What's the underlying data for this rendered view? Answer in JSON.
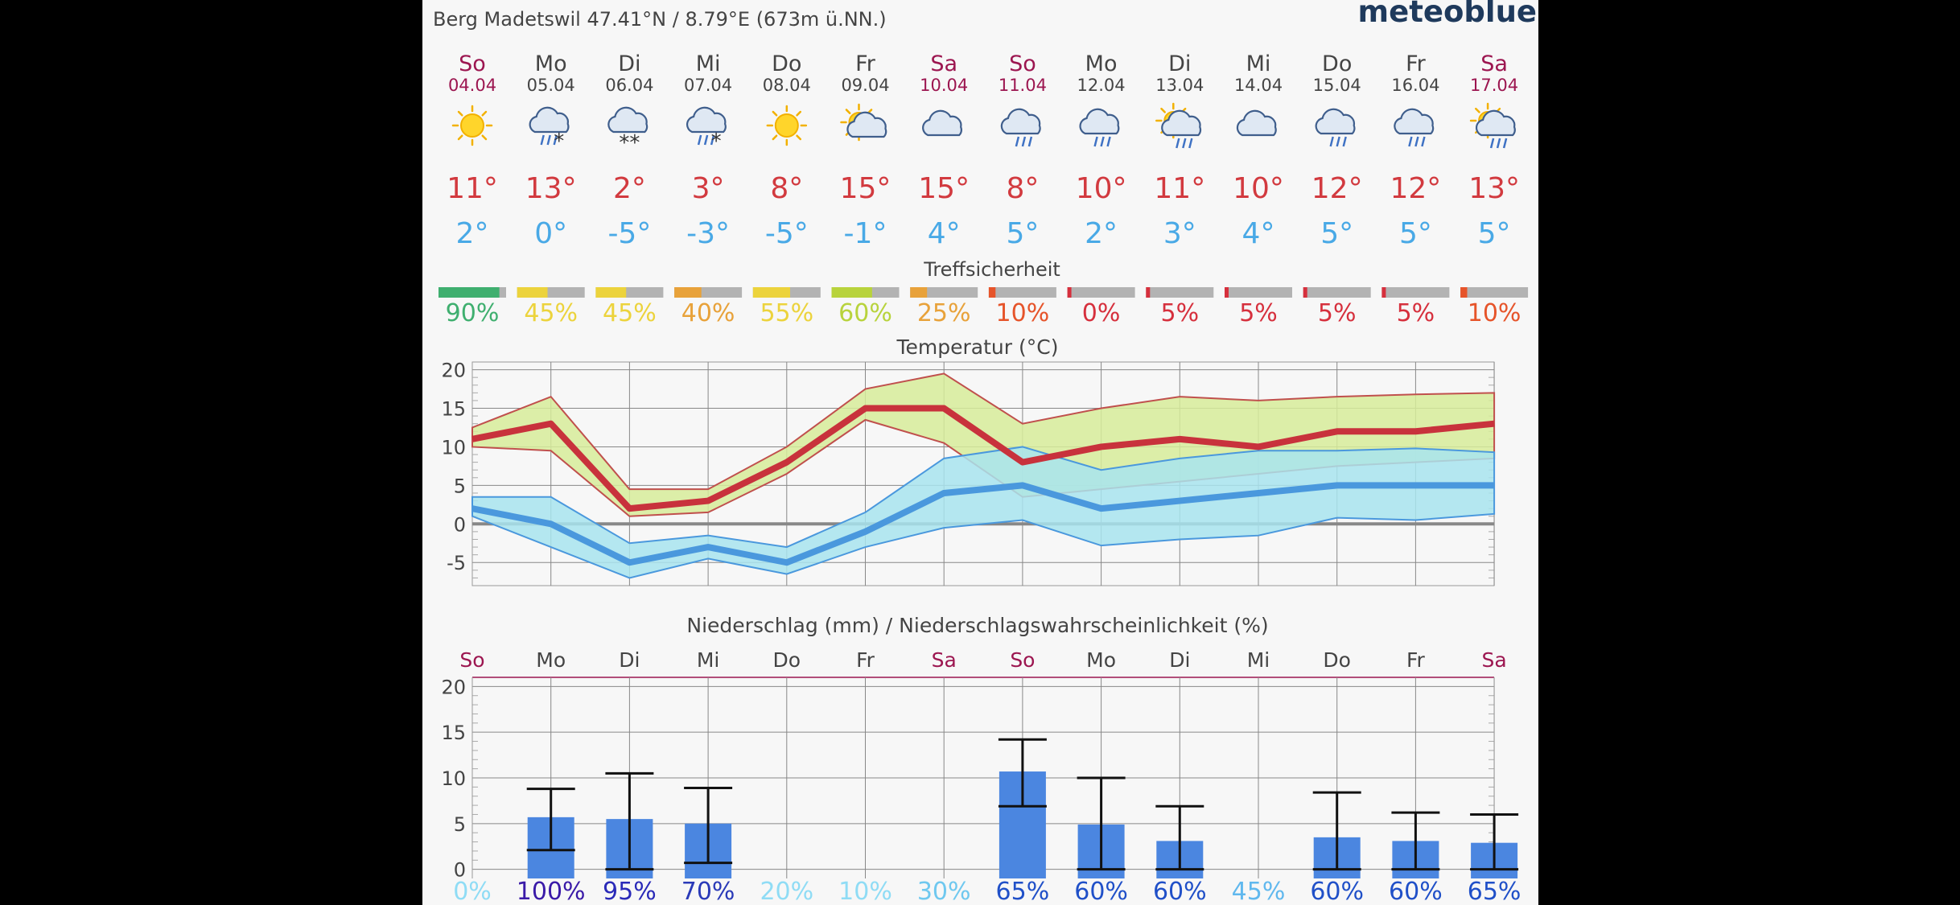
{
  "header": {
    "location": "Berg Madetswil  47.41°N / 8.79°E (673m ü.NN.)",
    "logo": "meteoblue"
  },
  "days": [
    {
      "name": "So",
      "date": "04.04",
      "weekend": true,
      "icon": "sun-icon",
      "tmax": "11°",
      "tmin": "2°",
      "conf_pct": 90,
      "conf_label": "90%",
      "conf_color": "#3faf6f"
    },
    {
      "name": "Mo",
      "date": "05.04",
      "weekend": false,
      "icon": "cloud-rain-snow-icon",
      "tmax": "13°",
      "tmin": "0°",
      "conf_pct": 45,
      "conf_label": "45%",
      "conf_color": "#ecd33c"
    },
    {
      "name": "Di",
      "date": "06.04",
      "weekend": false,
      "icon": "cloud-snow-icon",
      "tmax": "2°",
      "tmin": "-5°",
      "conf_pct": 45,
      "conf_label": "45%",
      "conf_color": "#ecd33c"
    },
    {
      "name": "Mi",
      "date": "07.04",
      "weekend": false,
      "icon": "cloud-rain-snow-icon",
      "tmax": "3°",
      "tmin": "-3°",
      "conf_pct": 40,
      "conf_label": "40%",
      "conf_color": "#e8a23a"
    },
    {
      "name": "Do",
      "date": "08.04",
      "weekend": false,
      "icon": "sun-icon",
      "tmax": "8°",
      "tmin": "-5°",
      "conf_pct": 55,
      "conf_label": "55%",
      "conf_color": "#ecd33c"
    },
    {
      "name": "Fr",
      "date": "09.04",
      "weekend": false,
      "icon": "sun-cloud-icon",
      "tmax": "15°",
      "tmin": "-1°",
      "conf_pct": 60,
      "conf_label": "60%",
      "conf_color": "#b8d33c"
    },
    {
      "name": "Sa",
      "date": "10.04",
      "weekend": true,
      "icon": "cloud-icon",
      "tmax": "15°",
      "tmin": "4°",
      "conf_pct": 25,
      "conf_label": "25%",
      "conf_color": "#e8a23a"
    },
    {
      "name": "So",
      "date": "11.04",
      "weekend": true,
      "icon": "cloud-rain-icon",
      "tmax": "8°",
      "tmin": "5°",
      "conf_pct": 10,
      "conf_label": "10%",
      "conf_color": "#e6542a"
    },
    {
      "name": "Mo",
      "date": "12.04",
      "weekend": false,
      "icon": "cloud-rain-icon",
      "tmax": "10°",
      "tmin": "2°",
      "conf_pct": 0,
      "conf_label": "0%",
      "conf_color": "#d6303d"
    },
    {
      "name": "Di",
      "date": "13.04",
      "weekend": false,
      "icon": "sun-cloud-rain-icon",
      "tmax": "11°",
      "tmin": "3°",
      "conf_pct": 5,
      "conf_label": "5%",
      "conf_color": "#d6303d"
    },
    {
      "name": "Mi",
      "date": "14.04",
      "weekend": false,
      "icon": "cloud-icon",
      "tmax": "10°",
      "tmin": "4°",
      "conf_pct": 5,
      "conf_label": "5%",
      "conf_color": "#d6303d"
    },
    {
      "name": "Do",
      "date": "15.04",
      "weekend": false,
      "icon": "cloud-rain-icon",
      "tmax": "12°",
      "tmin": "5°",
      "conf_pct": 5,
      "conf_label": "5%",
      "conf_color": "#d6303d"
    },
    {
      "name": "Fr",
      "date": "16.04",
      "weekend": false,
      "icon": "cloud-rain-icon",
      "tmax": "12°",
      "tmin": "5°",
      "conf_pct": 5,
      "conf_label": "5%",
      "conf_color": "#d6303d"
    },
    {
      "name": "Sa",
      "date": "17.04",
      "weekend": true,
      "icon": "sun-cloud-rain-icon",
      "tmax": "13°",
      "tmin": "5°",
      "conf_pct": 10,
      "conf_label": "10%",
      "conf_color": "#e6542a"
    }
  ],
  "confidence_title": "Treffsicherheit",
  "chart_data": [
    {
      "type": "line",
      "title": "Temperatur (°C)",
      "ylim": [
        -8,
        21
      ],
      "yticks": [
        -5,
        0,
        5,
        10,
        15,
        20
      ],
      "tick_labels": [
        "-5",
        "0",
        "5",
        "10",
        "15",
        "20"
      ],
      "grid": true,
      "series": [
        {
          "name": "max",
          "color": "#c8323c",
          "values": [
            11,
            13,
            2,
            3,
            8,
            15,
            15,
            8,
            10,
            11,
            10,
            12,
            12,
            13
          ],
          "range_low": [
            10,
            9.5,
            1,
            1.5,
            6.5,
            13.5,
            10.5,
            3.5,
            4.5,
            5.5,
            6.5,
            7.5,
            8,
            8.5
          ],
          "range_high": [
            12.5,
            16.5,
            4.5,
            4.5,
            10,
            17.5,
            19.5,
            13,
            15,
            16.5,
            16,
            16.5,
            16.8,
            17
          ]
        },
        {
          "name": "min",
          "color": "#4a98dd",
          "values": [
            2,
            0,
            -5,
            -3,
            -5,
            -1,
            4,
            5,
            2,
            3,
            4,
            5,
            5,
            5
          ],
          "range_low": [
            1,
            -3,
            -7,
            -4.5,
            -6.5,
            -3,
            -0.5,
            0.5,
            -2.8,
            -2,
            -1.5,
            0.8,
            0.5,
            1.3
          ],
          "range_high": [
            3.5,
            3.5,
            -2.5,
            -1.5,
            -3,
            1.5,
            8.5,
            10,
            7,
            8.5,
            9.5,
            9.5,
            9.8,
            9.3
          ]
        }
      ]
    },
    {
      "type": "bar",
      "title": "Niederschlag (mm) / Niederschlagswahrscheinlichkeit (%)",
      "categories": [
        "So",
        "Mo",
        "Di",
        "Mi",
        "Do",
        "Fr",
        "Sa",
        "So",
        "Mo",
        "Di",
        "Mi",
        "Do",
        "Fr",
        "Sa"
      ],
      "weekend": [
        true,
        false,
        false,
        false,
        false,
        false,
        true,
        true,
        false,
        false,
        false,
        false,
        false,
        true
      ],
      "values": [
        0,
        5.7,
        5.5,
        5.0,
        0,
        0,
        0,
        10.7,
        4.9,
        3.1,
        0,
        3.5,
        3.1,
        2.9
      ],
      "err_low": [
        null,
        2.1,
        0,
        0.7,
        null,
        null,
        null,
        6.9,
        0,
        0,
        null,
        0,
        0,
        0
      ],
      "err_high": [
        null,
        8.8,
        10.5,
        8.9,
        null,
        null,
        null,
        14.2,
        10.0,
        6.9,
        null,
        8.4,
        6.2,
        6.0
      ],
      "probability": [
        "0%",
        "100%",
        "95%",
        "70%",
        "20%",
        "10%",
        "30%",
        "65%",
        "60%",
        "60%",
        "45%",
        "60%",
        "60%",
        "65%"
      ],
      "prob_colors": [
        "#8fdcf5",
        "#3a1aa8",
        "#2a2ab8",
        "#2a3ab8",
        "#8fdcf5",
        "#8fdcf5",
        "#6fc8ef",
        "#2050c8",
        "#2050c8",
        "#2050c8",
        "#60b8ee",
        "#2050c8",
        "#2050c8",
        "#2050c8"
      ],
      "ylim": [
        -1,
        21
      ],
      "yticks": [
        0,
        5,
        10,
        15,
        20
      ],
      "tick_labels": [
        "0",
        "5",
        "10",
        "15",
        "20"
      ],
      "bar_color": "#4b86e0",
      "grid": true
    }
  ],
  "colors": {
    "weekend": "#9c1650",
    "weekday": "#444444",
    "tmax": "#d23a3f",
    "tmin": "#49a9e6"
  }
}
